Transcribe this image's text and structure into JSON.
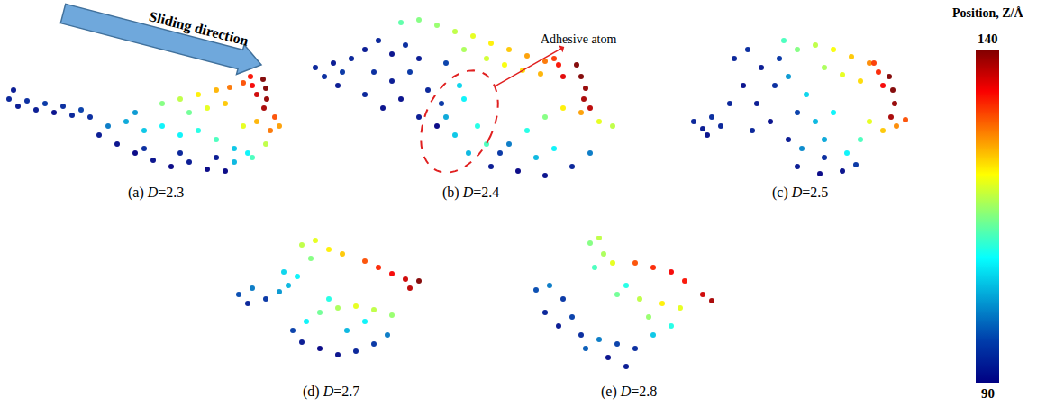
{
  "chart_data": [
    {
      "type": "scatter",
      "title": "(a) D=2.3",
      "xlim": [
        0,
        335
      ],
      "ylim": [
        128,
        0
      ],
      "tick_labels": false,
      "points": [
        [
          5,
          40,
          93
        ],
        [
          15,
          48,
          92
        ],
        [
          25,
          42,
          94
        ],
        [
          35,
          52,
          92
        ],
        [
          45,
          45,
          95
        ],
        [
          55,
          55,
          91
        ],
        [
          65,
          48,
          94
        ],
        [
          75,
          58,
          93
        ],
        [
          85,
          52,
          96
        ],
        [
          95,
          60,
          94
        ],
        [
          10,
          30,
          92
        ],
        [
          105,
          80,
          92
        ],
        [
          125,
          90,
          91
        ],
        [
          145,
          100,
          90
        ],
        [
          165,
          108,
          91
        ],
        [
          185,
          115,
          90
        ],
        [
          205,
          110,
          92
        ],
        [
          225,
          118,
          90
        ],
        [
          195,
          100,
          93
        ],
        [
          155,
          95,
          94
        ],
        [
          235,
          105,
          92
        ],
        [
          245,
          120,
          90
        ],
        [
          115,
          70,
          100
        ],
        [
          135,
          65,
          103
        ],
        [
          155,
          75,
          105
        ],
        [
          175,
          70,
          108
        ],
        [
          195,
          80,
          108
        ],
        [
          215,
          75,
          110
        ],
        [
          145,
          55,
          102
        ],
        [
          235,
          85,
          112
        ],
        [
          255,
          95,
          105
        ],
        [
          270,
          100,
          108
        ],
        [
          175,
          45,
          115
        ],
        [
          195,
          40,
          118
        ],
        [
          215,
          35,
          122
        ],
        [
          235,
          30,
          125
        ],
        [
          250,
          27,
          128
        ],
        [
          265,
          22,
          130
        ],
        [
          225,
          50,
          120
        ],
        [
          245,
          45,
          124
        ],
        [
          205,
          55,
          114
        ],
        [
          275,
          25,
          134
        ],
        [
          280,
          35,
          136
        ],
        [
          273,
          15,
          133
        ],
        [
          287,
          18,
          140
        ],
        [
          290,
          28,
          140
        ],
        [
          291,
          40,
          139
        ],
        [
          288,
          50,
          138
        ],
        [
          265,
          70,
          120
        ],
        [
          280,
          65,
          125
        ],
        [
          295,
          75,
          128
        ],
        [
          305,
          70,
          126
        ],
        [
          290,
          90,
          118
        ],
        [
          275,
          105,
          112
        ],
        [
          255,
          110,
          104
        ],
        [
          300,
          60,
          130
        ]
      ]
    },
    {
      "type": "scatter",
      "title": "(b) D=2.4",
      "xlim": [
        0,
        355
      ],
      "ylim": [
        195,
        0
      ],
      "tick_labels": false,
      "annotations": [
        "Adhesive atom"
      ],
      "points": [
        [
          5,
          65,
          93
        ],
        [
          15,
          75,
          94
        ],
        [
          25,
          60,
          92
        ],
        [
          35,
          70,
          95
        ],
        [
          45,
          55,
          93
        ],
        [
          30,
          85,
          92
        ],
        [
          60,
          45,
          92
        ],
        [
          75,
          35,
          93
        ],
        [
          90,
          50,
          91
        ],
        [
          105,
          40,
          94
        ],
        [
          120,
          55,
          92
        ],
        [
          70,
          70,
          94
        ],
        [
          90,
          80,
          92
        ],
        [
          110,
          70,
          95
        ],
        [
          130,
          90,
          93
        ],
        [
          100,
          100,
          91
        ],
        [
          120,
          120,
          92
        ],
        [
          140,
          130,
          90
        ],
        [
          80,
          110,
          91
        ],
        [
          150,
          60,
          96
        ],
        [
          60,
          95,
          93
        ],
        [
          145,
          105,
          95
        ],
        [
          150,
          120,
          103
        ],
        [
          160,
          140,
          105
        ],
        [
          170,
          100,
          108
        ],
        [
          175,
          160,
          104
        ],
        [
          185,
          130,
          110
        ],
        [
          195,
          150,
          112
        ],
        [
          165,
          85,
          106
        ],
        [
          100,
          15,
          113
        ],
        [
          120,
          12,
          115
        ],
        [
          140,
          18,
          116
        ],
        [
          160,
          25,
          118
        ],
        [
          180,
          30,
          120
        ],
        [
          200,
          38,
          122
        ],
        [
          220,
          45,
          124
        ],
        [
          240,
          52,
          126
        ],
        [
          260,
          58,
          128
        ],
        [
          170,
          45,
          117
        ],
        [
          195,
          55,
          119
        ],
        [
          215,
          62,
          121
        ],
        [
          235,
          68,
          123
        ],
        [
          255,
          72,
          125
        ],
        [
          275,
          62,
          133
        ],
        [
          280,
          75,
          135
        ],
        [
          270,
          55,
          131
        ],
        [
          295,
          62,
          140
        ],
        [
          300,
          75,
          140
        ],
        [
          305,
          88,
          139
        ],
        [
          303,
          100,
          138
        ],
        [
          310,
          110,
          137
        ],
        [
          280,
          110,
          122
        ],
        [
          300,
          115,
          126
        ],
        [
          320,
          125,
          120
        ],
        [
          335,
          130,
          118
        ],
        [
          260,
          120,
          115
        ],
        [
          240,
          135,
          110
        ],
        [
          220,
          150,
          100
        ],
        [
          250,
          165,
          104
        ],
        [
          270,
          155,
          108
        ],
        [
          200,
          175,
          92
        ],
        [
          230,
          180,
          90
        ],
        [
          260,
          185,
          91
        ],
        [
          290,
          175,
          93
        ],
        [
          210,
          160,
          95
        ],
        [
          310,
          160,
          100
        ]
      ]
    },
    {
      "type": "scatter",
      "title": "(c) D=2.5",
      "xlim": [
        0,
        245
      ],
      "ylim": [
        175,
        0
      ],
      "tick_labels": false,
      "points": [
        [
          5,
          110,
          93
        ],
        [
          15,
          118,
          92
        ],
        [
          25,
          105,
          94
        ],
        [
          35,
          115,
          93
        ],
        [
          20,
          125,
          91
        ],
        [
          50,
          40,
          93
        ],
        [
          65,
          30,
          94
        ],
        [
          80,
          50,
          92
        ],
        [
          60,
          70,
          91
        ],
        [
          45,
          90,
          93
        ],
        [
          75,
          90,
          92
        ],
        [
          95,
          70,
          94
        ],
        [
          90,
          110,
          91
        ],
        [
          110,
          130,
          92
        ],
        [
          70,
          120,
          93
        ],
        [
          100,
          40,
          95
        ],
        [
          120,
          100,
          96
        ],
        [
          110,
          60,
          102
        ],
        [
          130,
          80,
          106
        ],
        [
          140,
          110,
          104
        ],
        [
          150,
          130,
          103
        ],
        [
          125,
          140,
          101
        ],
        [
          160,
          100,
          108
        ],
        [
          120,
          30,
          115
        ],
        [
          140,
          25,
          118
        ],
        [
          160,
          30,
          121
        ],
        [
          180,
          38,
          124
        ],
        [
          200,
          45,
          127
        ],
        [
          150,
          50,
          117
        ],
        [
          170,
          58,
          120
        ],
        [
          190,
          65,
          123
        ],
        [
          105,
          20,
          112
        ],
        [
          210,
          55,
          132
        ],
        [
          215,
          70,
          134
        ],
        [
          205,
          45,
          131
        ],
        [
          222,
          60,
          140
        ],
        [
          226,
          75,
          140
        ],
        [
          228,
          90,
          139
        ],
        [
          224,
          105,
          138
        ],
        [
          200,
          110,
          120
        ],
        [
          215,
          120,
          124
        ],
        [
          230,
          115,
          127
        ],
        [
          190,
          130,
          112
        ],
        [
          175,
          145,
          108
        ],
        [
          240,
          108,
          130
        ],
        [
          120,
          160,
          92
        ],
        [
          145,
          168,
          90
        ],
        [
          170,
          165,
          91
        ],
        [
          150,
          150,
          94
        ],
        [
          185,
          158,
          95
        ]
      ]
    },
    {
      "type": "scatter",
      "title": "(d) D=2.7",
      "xlim": [
        0,
        225
      ],
      "ylim": [
        150,
        0
      ],
      "tick_labels": false,
      "points": [
        [
          10,
          65,
          97
        ],
        [
          25,
          58,
          100
        ],
        [
          40,
          70,
          95
        ],
        [
          55,
          62,
          102
        ],
        [
          20,
          75,
          93
        ],
        [
          65,
          55,
          104
        ],
        [
          80,
          10,
          118
        ],
        [
          95,
          5,
          120
        ],
        [
          110,
          15,
          122
        ],
        [
          90,
          25,
          115
        ],
        [
          125,
          20,
          124
        ],
        [
          150,
          28,
          130
        ],
        [
          165,
          35,
          132
        ],
        [
          180,
          42,
          134
        ],
        [
          195,
          48,
          136
        ],
        [
          210,
          50,
          140
        ],
        [
          200,
          58,
          137
        ],
        [
          100,
          85,
          114
        ],
        [
          120,
          80,
          117
        ],
        [
          140,
          78,
          120
        ],
        [
          160,
          82,
          118
        ],
        [
          180,
          88,
          116
        ],
        [
          110,
          70,
          110
        ],
        [
          85,
          95,
          108
        ],
        [
          80,
          118,
          92
        ],
        [
          100,
          125,
          90
        ],
        [
          120,
          132,
          91
        ],
        [
          140,
          128,
          93
        ],
        [
          160,
          120,
          95
        ],
        [
          175,
          110,
          100
        ],
        [
          70,
          105,
          96
        ],
        [
          130,
          105,
          104
        ],
        [
          150,
          95,
          108
        ],
        [
          60,
          40,
          106
        ],
        [
          75,
          45,
          108
        ]
      ]
    },
    {
      "type": "scatter",
      "title": "(e) D=2.8",
      "xlim": [
        0,
        225
      ],
      "ylim": [
        150,
        0
      ],
      "tick_labels": false,
      "points": [
        [
          10,
          60,
          97
        ],
        [
          25,
          55,
          100
        ],
        [
          40,
          70,
          95
        ],
        [
          20,
          85,
          93
        ],
        [
          50,
          90,
          96
        ],
        [
          35,
          100,
          92
        ],
        [
          60,
          110,
          94
        ],
        [
          70,
          8,
          115
        ],
        [
          80,
          2,
          118
        ],
        [
          85,
          20,
          117
        ],
        [
          95,
          30,
          120
        ],
        [
          75,
          35,
          112
        ],
        [
          120,
          30,
          130
        ],
        [
          140,
          35,
          132
        ],
        [
          160,
          40,
          134
        ],
        [
          175,
          50,
          133
        ],
        [
          195,
          65,
          136
        ],
        [
          205,
          72,
          138
        ],
        [
          100,
          65,
          114
        ],
        [
          125,
          70,
          118
        ],
        [
          150,
          75,
          122
        ],
        [
          170,
          80,
          120
        ],
        [
          110,
          55,
          110
        ],
        [
          135,
          90,
          116
        ],
        [
          80,
          115,
          100
        ],
        [
          100,
          120,
          96
        ],
        [
          120,
          125,
          94
        ],
        [
          90,
          135,
          91
        ],
        [
          110,
          145,
          92
        ],
        [
          140,
          110,
          105
        ],
        [
          160,
          100,
          110
        ],
        [
          65,
          125,
          98
        ]
      ]
    }
  ],
  "colorbar": {
    "title": "Position, Z/Å",
    "range": [
      90,
      140
    ],
    "ticks": [
      90,
      140
    ]
  },
  "annotations": [
    "Sliding direction"
  ]
}
